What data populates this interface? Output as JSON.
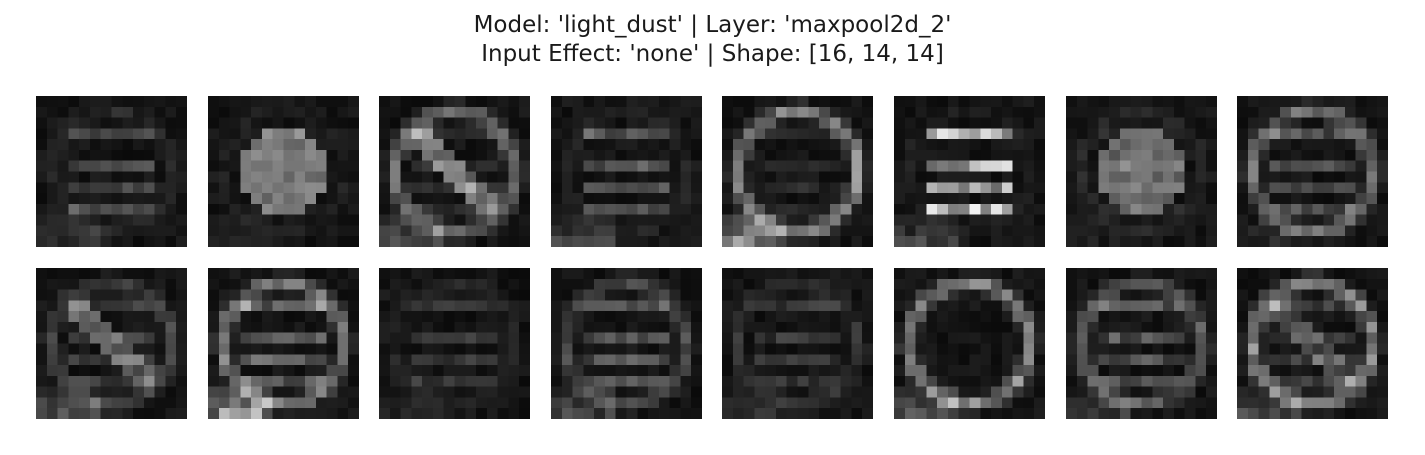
{
  "figure": {
    "title_line_1": "Model: 'light_dust' | Layer: 'maxpool2d_2'",
    "title_line_2": "Input Effect: 'none' | Shape: [16, 14, 14]",
    "colormap": "gray",
    "background_color": "#ffffff"
  },
  "grid": {
    "rows": 2,
    "cols": 8,
    "map_size": 14,
    "maps": [
      {
        "index": 0,
        "pattern": "text",
        "ring": 0.1,
        "disc": 0.0,
        "text": 0.3,
        "slash": 0.0,
        "corner": 0.2,
        "seed": 11
      },
      {
        "index": 1,
        "pattern": "disc",
        "ring": 0.05,
        "disc": 0.42,
        "text": 0.05,
        "slash": 0.0,
        "corner": 0.1,
        "seed": 23
      },
      {
        "index": 2,
        "pattern": "ring-slash",
        "ring": 0.45,
        "disc": 0.0,
        "text": 0.15,
        "slash": 0.45,
        "corner": 0.35,
        "seed": 37
      },
      {
        "index": 3,
        "pattern": "text",
        "ring": 0.08,
        "disc": 0.0,
        "text": 0.35,
        "slash": 0.0,
        "corner": 0.3,
        "seed": 41
      },
      {
        "index": 4,
        "pattern": "ring",
        "ring": 0.55,
        "disc": 0.0,
        "text": 0.1,
        "slash": 0.0,
        "corner": 0.75,
        "seed": 53
      },
      {
        "index": 5,
        "pattern": "text",
        "ring": 0.05,
        "disc": 0.0,
        "text": 0.85,
        "slash": 0.0,
        "corner": 0.3,
        "seed": 67
      },
      {
        "index": 6,
        "pattern": "disc",
        "ring": 0.1,
        "disc": 0.35,
        "text": 0.1,
        "slash": 0.0,
        "corner": 0.05,
        "seed": 71
      },
      {
        "index": 7,
        "pattern": "ring-text",
        "ring": 0.45,
        "disc": 0.0,
        "text": 0.35,
        "slash": 0.0,
        "corner": 0.15,
        "seed": 83
      },
      {
        "index": 8,
        "pattern": "ring-slash",
        "ring": 0.25,
        "disc": 0.0,
        "text": 0.2,
        "slash": 0.35,
        "corner": 0.35,
        "seed": 97
      },
      {
        "index": 9,
        "pattern": "ring-text",
        "ring": 0.5,
        "disc": 0.0,
        "text": 0.4,
        "slash": 0.0,
        "corner": 0.85,
        "seed": 101
      },
      {
        "index": 10,
        "pattern": "text",
        "ring": 0.08,
        "disc": 0.0,
        "text": 0.18,
        "slash": 0.0,
        "corner": 0.1,
        "seed": 113
      },
      {
        "index": 11,
        "pattern": "text",
        "ring": 0.25,
        "disc": 0.0,
        "text": 0.35,
        "slash": 0.0,
        "corner": 0.3,
        "seed": 127
      },
      {
        "index": 12,
        "pattern": "ring-text",
        "ring": 0.15,
        "disc": 0.0,
        "text": 0.2,
        "slash": 0.0,
        "corner": 0.15,
        "seed": 131
      },
      {
        "index": 13,
        "pattern": "ring",
        "ring": 0.55,
        "disc": 0.0,
        "text": 0.0,
        "slash": 0.0,
        "corner": 0.45,
        "seed": 149
      },
      {
        "index": 14,
        "pattern": "ring-text",
        "ring": 0.35,
        "disc": 0.0,
        "text": 0.35,
        "slash": 0.0,
        "corner": 0.25,
        "seed": 157
      },
      {
        "index": 15,
        "pattern": "ring-slash",
        "ring": 0.55,
        "disc": 0.0,
        "text": 0.2,
        "slash": 0.3,
        "corner": 0.3,
        "seed": 163
      }
    ]
  }
}
